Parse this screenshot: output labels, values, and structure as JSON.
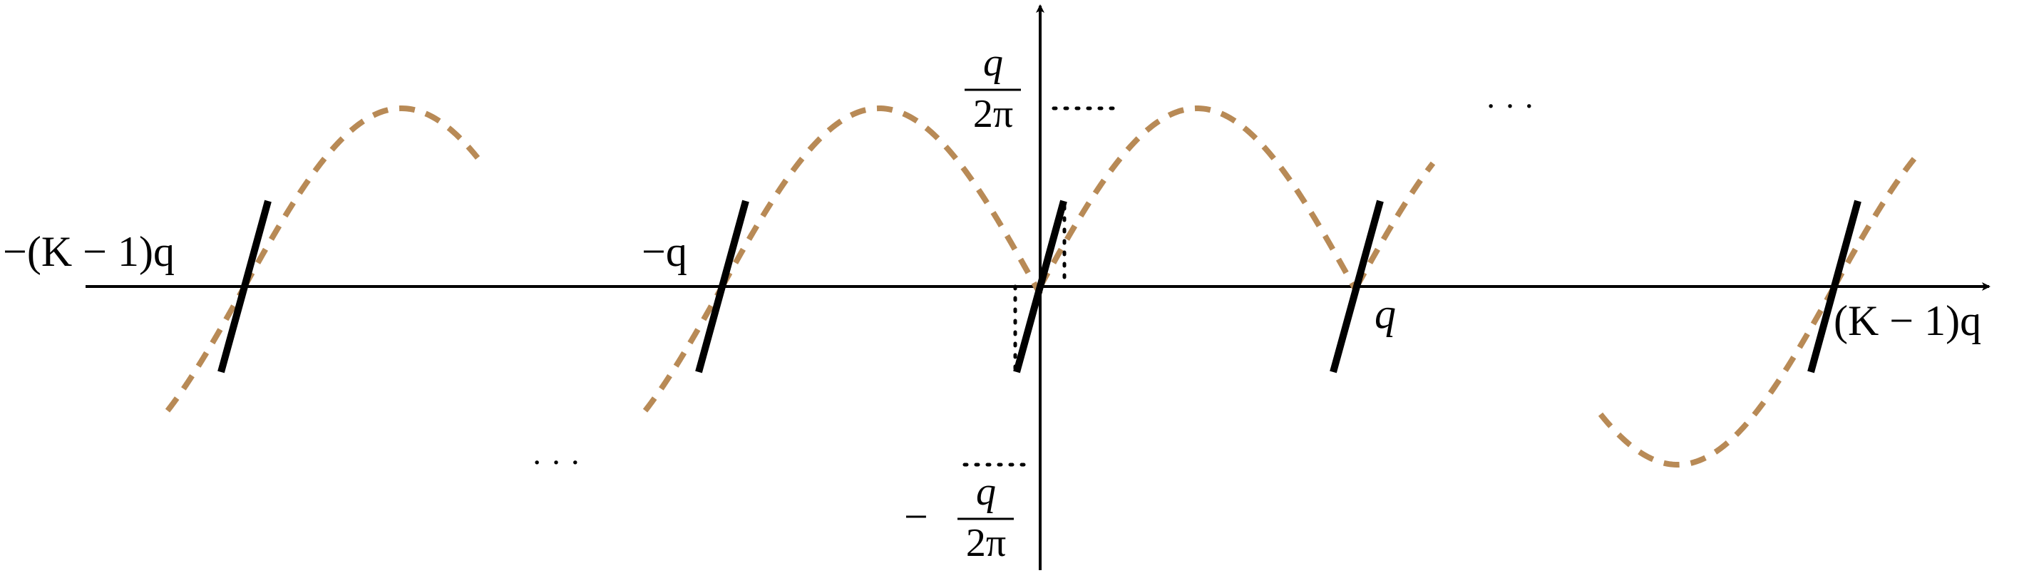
{
  "labels": {
    "neg_k_minus_1_q": "−(K − 1)q",
    "neg_q": "−q",
    "pos_q": "q",
    "pos_k_minus_1_q": "(K − 1)q",
    "top_frac_num": "q",
    "top_frac_den": "2π",
    "bottom_minus": "−",
    "bottom_frac_num": "q",
    "bottom_frac_den": "2π",
    "ellipsis_bottom": "· · ·",
    "ellipsis_top": "· · ·"
  },
  "colors": {
    "curve": "#b88a56",
    "segment": "#000000",
    "axis": "#000000"
  }
}
